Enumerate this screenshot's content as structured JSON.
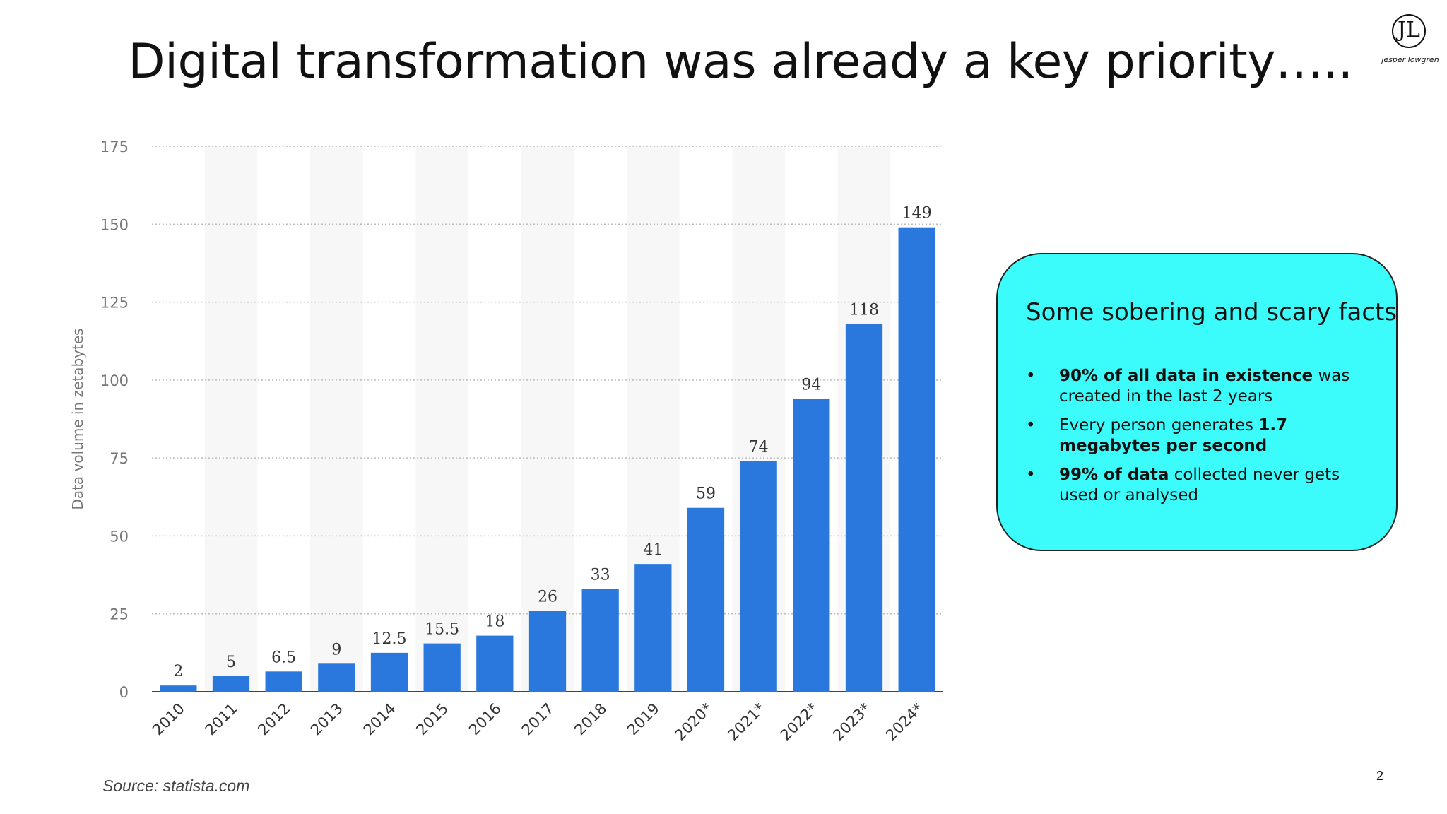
{
  "slide": {
    "title": "Digital transformation was already a key priority…..",
    "source": "Source: statista.com",
    "page_number": "2"
  },
  "logo": {
    "monogram": "JL",
    "name": "jesper lowgren"
  },
  "facts": {
    "title": "Some sobering and scary facts",
    "bullet": "•",
    "items": [
      {
        "bold": "90% of all data in existence",
        "rest_inline": " was",
        "rest": "created in the last 2 years"
      },
      {
        "lead": "Every person generates ",
        "bold": "1.7 megabytes per second"
      },
      {
        "bold": "99% of data",
        "rest_inline": " collected never gets used or analysed"
      }
    ]
  },
  "colors": {
    "bar": "#2a77dd",
    "axis_text": "#777777",
    "value_text": "#333333",
    "grid": "#bbbbbb",
    "band": "#f7f7f7",
    "box": "#3cfbfb"
  },
  "chart_data": {
    "type": "bar",
    "ylabel": "Data volume in zetabytes",
    "ylim": [
      0,
      175
    ],
    "yticks": [
      0,
      25,
      50,
      75,
      100,
      125,
      150,
      175
    ],
    "categories": [
      "2010",
      "2011",
      "2012",
      "2013",
      "2014",
      "2015",
      "2016",
      "2017",
      "2018",
      "2019",
      "2020*",
      "2021*",
      "2022*",
      "2023*",
      "2024*"
    ],
    "values": [
      2,
      5,
      6.5,
      9,
      12.5,
      15.5,
      18,
      26,
      33,
      41,
      59,
      74,
      94,
      118,
      149
    ],
    "value_labels": [
      "2",
      "5",
      "6.5",
      "9",
      "12.5",
      "15.5",
      "18",
      "26",
      "33",
      "41",
      "59",
      "74",
      "94",
      "118",
      "149"
    ],
    "grid": true
  }
}
